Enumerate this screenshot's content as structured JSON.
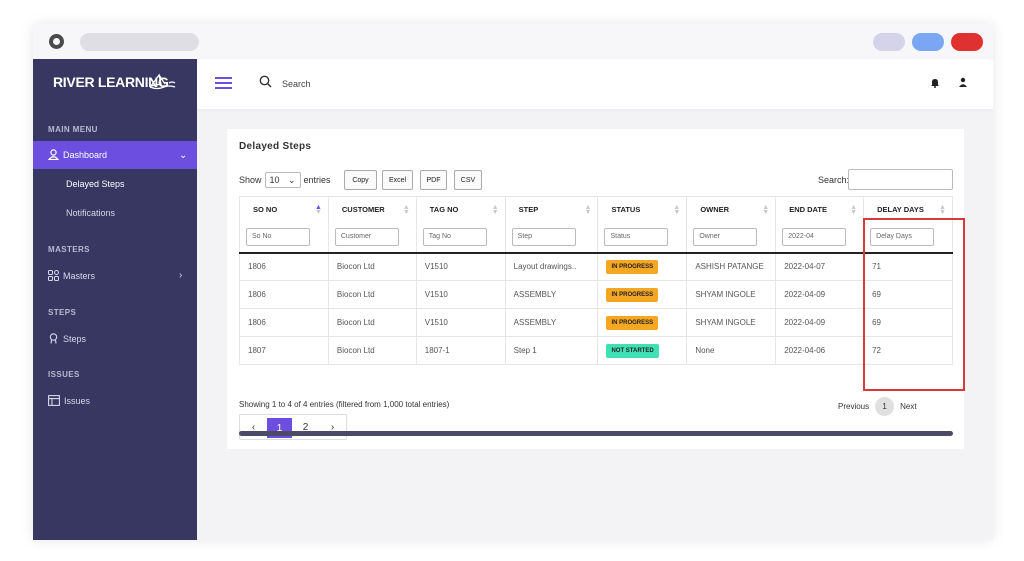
{
  "sidebar": {
    "brand": "RIVER LEARNING",
    "sections": {
      "main": "MAIN MENU",
      "masters": "MASTERS",
      "steps": "STEPS",
      "issues": "ISSUES"
    },
    "items": {
      "dashboard": "Dashboard",
      "delayed_steps": "Delayed Steps",
      "notifications": "Notifications",
      "masters": "Masters",
      "steps": "Steps",
      "issues": "Issues"
    }
  },
  "header": {
    "search_label": "Search"
  },
  "card": {
    "title": "Delayed Steps",
    "show": "Show",
    "entries_value": "10",
    "entries": "entries",
    "buttons": {
      "copy": "Copy",
      "excel": "Excel",
      "pdf": "PDF",
      "csv": "CSV"
    },
    "search_label": "Search:"
  },
  "table": {
    "headers": [
      "SO NO",
      "CUSTOMER",
      "TAG NO",
      "STEP",
      "STATUS",
      "OWNER",
      "END DATE",
      "DELAY DAYS"
    ],
    "filters": [
      "So No",
      "Customer",
      "Tag No",
      "Step",
      "Status",
      "Owner",
      "2022-04",
      "Delay Days"
    ],
    "rows": [
      {
        "so": "1806",
        "customer": "Biocon Ltd",
        "tag": "V1510",
        "step": "Layout drawings..",
        "status": "IN PROGRESS",
        "owner": "ASHISH PATANGE",
        "end": "2022-04-07",
        "delay": "71"
      },
      {
        "so": "1806",
        "customer": "Biocon Ltd",
        "tag": "V1510",
        "step": "ASSEMBLY",
        "status": "IN PROGRESS",
        "owner": "SHYAM INGOLE",
        "end": "2022-04-09",
        "delay": "69"
      },
      {
        "so": "1806",
        "customer": "Biocon Ltd",
        "tag": "V1510",
        "step": "ASSEMBLY",
        "status": "IN PROGRESS",
        "owner": "SHYAM INGOLE",
        "end": "2022-04-09",
        "delay": "69"
      },
      {
        "so": "1807",
        "customer": "Biocon Ltd",
        "tag": "1807-1",
        "step": "Step 1",
        "status": "NOT STARTED",
        "owner": "None",
        "end": "2022-04-06",
        "delay": "72"
      }
    ]
  },
  "status_colors": {
    "IN PROGRESS": "#f5a623",
    "NOT STARTED": "#3fe0b3"
  },
  "footer": {
    "info": "Showing 1 to 4 of 4 entries (filtered from 1,000 total entries)",
    "previous": "Previous",
    "current": "1",
    "next": "Next",
    "pages": [
      "1",
      "2"
    ]
  },
  "icons": [
    "app-logo-icon",
    "hamburger-icon",
    "search-icon",
    "bell-icon",
    "user-icon",
    "dashboard-icon",
    "masters-icon",
    "steps-icon",
    "issues-icon",
    "sort-icon",
    "chevron-left-icon",
    "chevron-right-icon"
  ]
}
